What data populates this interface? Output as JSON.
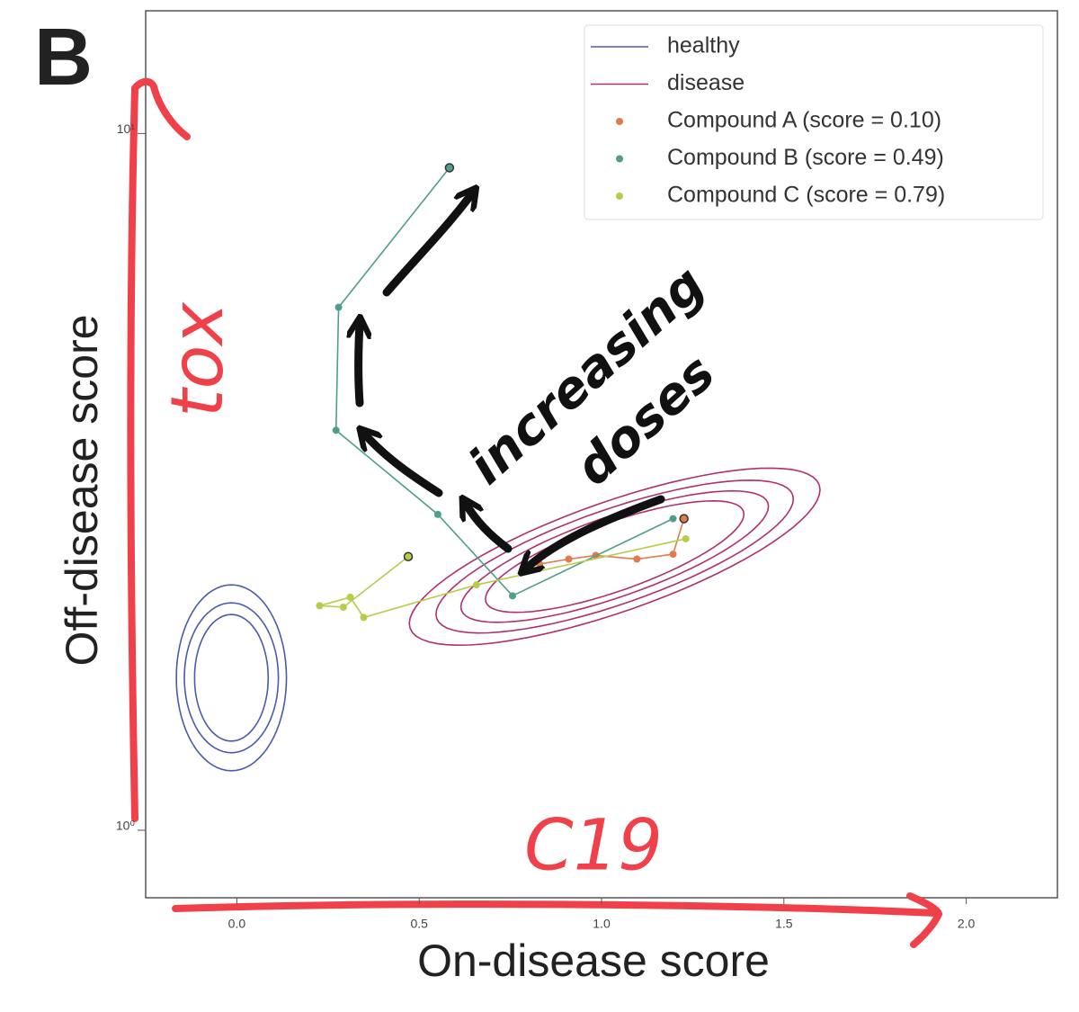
{
  "chart_data": {
    "type": "line",
    "panel_label": "B",
    "x_label": "On-disease score",
    "y_label": "Off-disease score",
    "xlim": [
      -0.25,
      2.25
    ],
    "ylim": [
      0.8,
      15
    ],
    "log_y": true,
    "xticks": [
      {
        "value": 0,
        "label": "0.0"
      },
      0.5,
      {
        "value": 1,
        "label": "1.0"
      },
      1.5,
      {
        "value": 2,
        "label": "2.0"
      }
    ],
    "yticks": [
      {
        "value": 1,
        "label": "10⁰"
      },
      {
        "value": 10,
        "label": "10¹"
      }
    ],
    "legend": "upper right",
    "contours": [
      {
        "name": "healthy",
        "color": "#4a5bab",
        "ellipses": [
          {
            "center": [
              -0.015,
              1.655
            ],
            "major_end": [
              -0.015,
              2.25
            ],
            "minor_end": [
              0.136,
              1.655
            ]
          },
          {
            "center": [
              -0.015,
              1.655
            ],
            "major_end": [
              -0.015,
              2.12
            ],
            "minor_end": [
              0.114,
              1.655
            ]
          },
          {
            "center": [
              -0.015,
              1.655
            ],
            "major_end": [
              -0.015,
              2.04
            ],
            "minor_end": [
              0.086,
              1.655
            ]
          }
        ]
      },
      {
        "name": "disease",
        "color": "#b0306e",
        "ellipses": [
          {
            "center": [
              1.036,
              2.47
            ],
            "major_end": [
              1.597,
              3.13
            ],
            "minor_end": [
              1.085,
              2.08
            ]
          },
          {
            "center": [
              1.036,
              2.47
            ],
            "major_end": [
              1.524,
              3.03
            ],
            "minor_end": [
              1.079,
              2.13
            ]
          },
          {
            "center": [
              1.036,
              2.47
            ],
            "major_end": [
              1.456,
              2.95
            ],
            "minor_end": [
              1.073,
              2.18
            ]
          },
          {
            "center": [
              1.036,
              2.47
            ],
            "major_end": [
              1.389,
              2.87
            ],
            "minor_end": [
              1.067,
              2.22
            ]
          }
        ]
      }
    ],
    "series": [
      {
        "name": "Compound A (score = 0.10)",
        "color": "#e07b4f",
        "x": [
          0.83,
          0.91,
          0.984,
          1.097,
          1.196,
          1.226
        ],
        "values": [
          2.41,
          2.45,
          2.48,
          2.45,
          2.49,
          2.8
        ]
      },
      {
        "name": "Compound B (score = 0.49)",
        "color": "#4f9e8c",
        "x": [
          1.196,
          0.756,
          0.551,
          0.272,
          0.279,
          0.583
        ],
        "values": [
          2.8,
          2.17,
          2.84,
          3.75,
          5.63,
          8.93
        ]
      },
      {
        "name": "Compound C (score = 0.79)",
        "color": "#b8cc4c",
        "x": [
          1.231,
          0.657,
          0.348,
          0.311,
          0.227,
          0.292,
          0.47
        ],
        "values": [
          2.62,
          2.25,
          2.02,
          2.16,
          2.1,
          2.09,
          2.47
        ]
      }
    ],
    "annotations": [
      "tox",
      "C19",
      "increasing",
      "doses"
    ]
  }
}
